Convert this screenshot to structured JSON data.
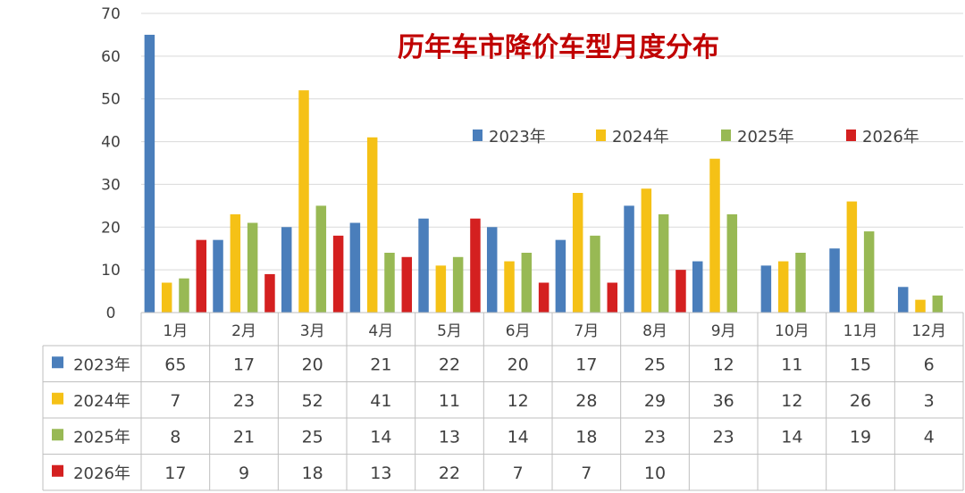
{
  "chart_data": {
    "type": "bar",
    "title": "历年车市降价车型月度分布",
    "categories": [
      "1月",
      "2月",
      "3月",
      "4月",
      "5月",
      "6月",
      "7月",
      "8月",
      "9月",
      "10月",
      "11月",
      "12月"
    ],
    "series": [
      {
        "name": "2023年",
        "color": "#4a7ebb",
        "values": [
          65,
          17,
          20,
          21,
          22,
          20,
          17,
          25,
          12,
          11,
          15,
          6
        ]
      },
      {
        "name": "2024年",
        "color": "#f5c116",
        "values": [
          7,
          23,
          52,
          41,
          11,
          12,
          28,
          29,
          36,
          12,
          26,
          3
        ]
      },
      {
        "name": "2025年",
        "color": "#98b954",
        "values": [
          8,
          21,
          25,
          14,
          13,
          14,
          18,
          23,
          23,
          14,
          19,
          4
        ]
      },
      {
        "name": "2026年",
        "color": "#d42020",
        "values": [
          17,
          9,
          18,
          13,
          22,
          7,
          7,
          10,
          null,
          null,
          null,
          null
        ]
      }
    ],
    "yticks": [
      "0",
      "10",
      "20",
      "30",
      "40",
      "50",
      "60",
      "70"
    ],
    "ylim": [
      0,
      70
    ],
    "grid": true,
    "legend": "top-right",
    "data_table": true
  }
}
